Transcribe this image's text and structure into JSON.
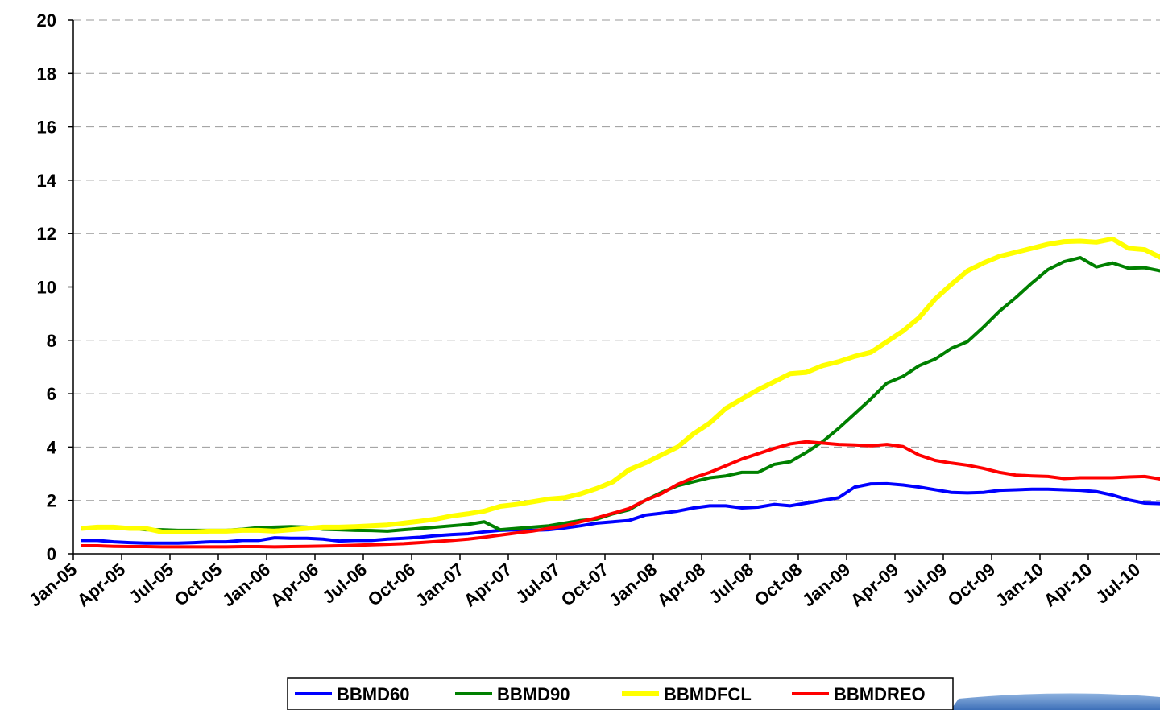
{
  "chart_data": {
    "type": "line",
    "categories": [
      "Jan-05",
      null,
      null,
      "Apr-05",
      null,
      null,
      "Jul-05",
      null,
      null,
      "Oct-05",
      null,
      null,
      "Jan-06",
      null,
      null,
      "Apr-06",
      null,
      null,
      "Jul-06",
      null,
      null,
      "Oct-06",
      null,
      null,
      "Jan-07",
      null,
      null,
      "Apr-07",
      null,
      null,
      "Jul-07",
      null,
      null,
      "Oct-07",
      null,
      null,
      "Jan-08",
      null,
      null,
      "Apr-08",
      null,
      null,
      "Jul-08",
      null,
      null,
      "Oct-08",
      null,
      null,
      "Jan-09",
      null,
      null,
      "Apr-09",
      null,
      null,
      "Jul-09",
      null,
      null,
      "Oct-09",
      null,
      null,
      "Jan-10",
      null,
      null,
      "Apr-10",
      null,
      null,
      "Jul-10",
      null
    ],
    "series": [
      {
        "name": "BBMD60",
        "color": "#0000ff",
        "values": [
          0.5,
          0.5,
          0.45,
          0.42,
          0.4,
          0.4,
          0.4,
          0.42,
          0.45,
          0.45,
          0.5,
          0.5,
          0.6,
          0.58,
          0.58,
          0.55,
          0.48,
          0.5,
          0.5,
          0.55,
          0.58,
          0.62,
          0.68,
          0.72,
          0.75,
          0.82,
          0.88,
          0.9,
          0.88,
          0.9,
          0.97,
          1.05,
          1.15,
          1.2,
          1.25,
          1.45,
          1.52,
          1.6,
          1.72,
          1.8,
          1.8,
          1.72,
          1.75,
          1.85,
          1.8,
          1.9,
          2.0,
          2.1,
          2.5,
          2.62,
          2.63,
          2.58,
          2.5,
          2.4,
          2.3,
          2.28,
          2.3,
          2.38,
          2.4,
          2.42,
          2.42,
          2.4,
          2.38,
          2.33,
          2.2,
          2.02,
          1.9,
          1.88
        ]
      },
      {
        "name": "BBMD90",
        "color": "#008000",
        "values": [
          0.95,
          1.0,
          0.98,
          0.95,
          0.9,
          0.9,
          0.88,
          0.88,
          0.88,
          0.88,
          0.92,
          0.98,
          1.0,
          1.02,
          1.0,
          0.92,
          0.9,
          0.88,
          0.87,
          0.85,
          0.9,
          0.95,
          1.0,
          1.05,
          1.1,
          1.2,
          0.9,
          0.95,
          1.0,
          1.05,
          1.15,
          1.25,
          1.3,
          1.5,
          1.65,
          2.0,
          2.3,
          2.55,
          2.7,
          2.85,
          2.92,
          3.05,
          3.05,
          3.35,
          3.45,
          3.8,
          4.2,
          4.7,
          5.25,
          5.8,
          6.4,
          6.65,
          7.05,
          7.3,
          7.7,
          7.95,
          8.5,
          9.1,
          9.6,
          10.15,
          10.65,
          10.95,
          11.1,
          10.75,
          10.9,
          10.7,
          10.72,
          10.6
        ]
      },
      {
        "name": "BBMDFCL",
        "color": "#ffff00",
        "values": [
          0.95,
          1.0,
          1.0,
          0.95,
          0.95,
          0.82,
          0.82,
          0.82,
          0.85,
          0.85,
          0.88,
          0.88,
          0.85,
          0.9,
          0.95,
          1.0,
          1.0,
          1.02,
          1.05,
          1.08,
          1.15,
          1.22,
          1.3,
          1.42,
          1.5,
          1.6,
          1.78,
          1.85,
          1.95,
          2.05,
          2.1,
          2.25,
          2.45,
          2.7,
          3.15,
          3.4,
          3.7,
          4.0,
          4.5,
          4.9,
          5.45,
          5.8,
          6.15,
          6.45,
          6.75,
          6.8,
          7.05,
          7.2,
          7.4,
          7.55,
          7.95,
          8.35,
          8.85,
          9.55,
          10.1,
          10.6,
          10.9,
          11.15,
          11.3,
          11.45,
          11.6,
          11.7,
          11.72,
          11.68,
          11.8,
          11.45,
          11.4,
          11.1
        ]
      },
      {
        "name": "BBMDREO",
        "color": "#ff0000",
        "values": [
          0.3,
          0.3,
          0.28,
          0.27,
          0.27,
          0.26,
          0.26,
          0.26,
          0.26,
          0.26,
          0.27,
          0.27,
          0.26,
          0.27,
          0.28,
          0.29,
          0.3,
          0.32,
          0.34,
          0.36,
          0.38,
          0.42,
          0.46,
          0.5,
          0.55,
          0.62,
          0.7,
          0.78,
          0.85,
          0.95,
          1.05,
          1.2,
          1.35,
          1.52,
          1.7,
          2.0,
          2.25,
          2.6,
          2.85,
          3.05,
          3.3,
          3.55,
          3.75,
          3.95,
          4.12,
          4.2,
          4.15,
          4.1,
          4.08,
          4.05,
          4.1,
          4.02,
          3.7,
          3.5,
          3.4,
          3.32,
          3.2,
          3.05,
          2.95,
          2.92,
          2.9,
          2.82,
          2.85,
          2.85,
          2.85,
          2.88,
          2.9,
          2.8
        ]
      }
    ],
    "ylim": [
      0,
      20
    ],
    "yticks": [
      0,
      2,
      4,
      6,
      8,
      10,
      12,
      14,
      16,
      18,
      20
    ],
    "grid": true
  }
}
